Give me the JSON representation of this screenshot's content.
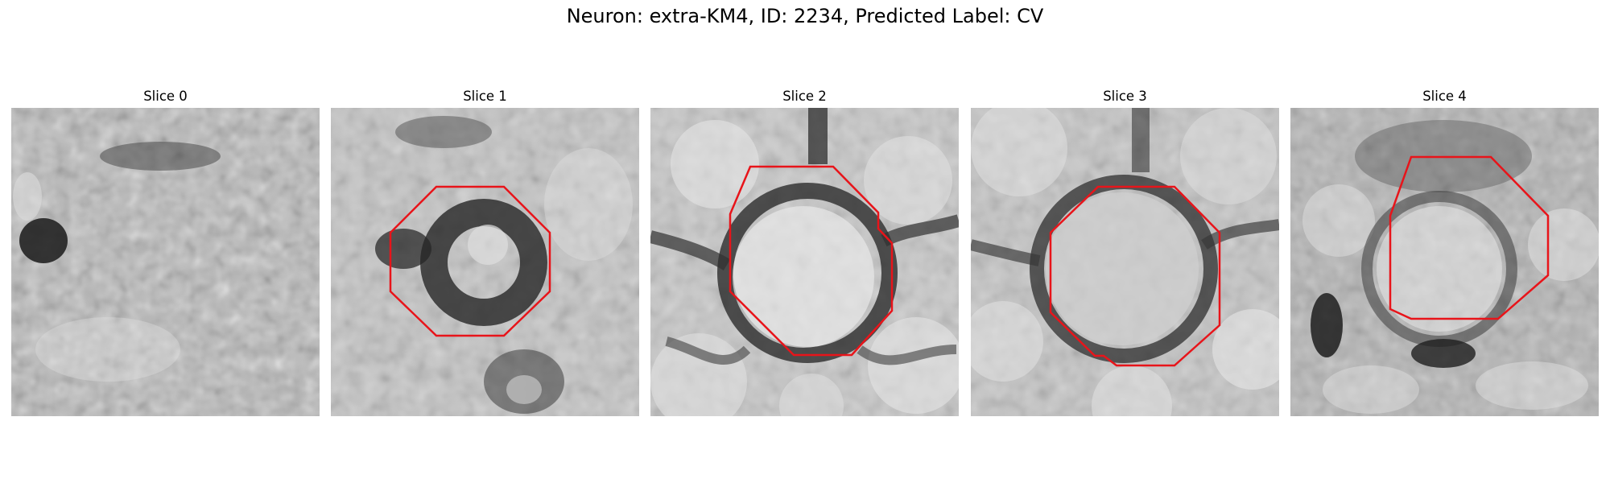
{
  "figure": {
    "title": "Neuron: extra-KM4, ID: 2234, Predicted Label: CV",
    "contour_color": "#e8141a",
    "panels": [
      {
        "title": "Slice 0",
        "has_contour": false
      },
      {
        "title": "Slice 1",
        "has_contour": true
      },
      {
        "title": "Slice 2",
        "has_contour": true
      },
      {
        "title": "Slice 3",
        "has_contour": true
      },
      {
        "title": "Slice 4",
        "has_contour": true
      }
    ]
  }
}
